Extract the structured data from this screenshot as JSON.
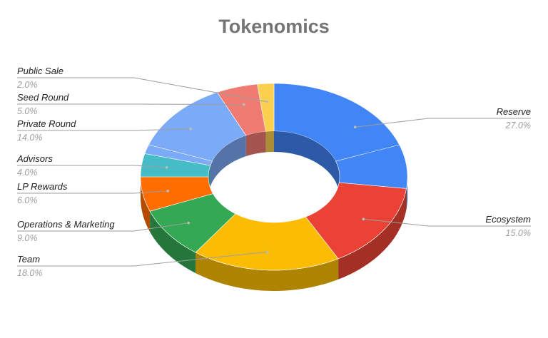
{
  "chart_data": {
    "type": "pie",
    "variant": "3d-donut",
    "title": "Tokenomics",
    "slices": [
      {
        "label": "Reserve",
        "value": 27.0,
        "value_label": "27.0%",
        "color": "#4285f4"
      },
      {
        "label": "Ecosystem",
        "value": 15.0,
        "value_label": "15.0%",
        "color": "#ea4335"
      },
      {
        "label": "Team",
        "value": 18.0,
        "value_label": "18.0%",
        "color": "#fbbc04"
      },
      {
        "label": "Operations & Marketing",
        "value": 9.0,
        "value_label": "9.0%",
        "color": "#34a853"
      },
      {
        "label": "LP Rewards",
        "value": 6.0,
        "value_label": "6.0%",
        "color": "#ff6d01"
      },
      {
        "label": "Advisors",
        "value": 4.0,
        "value_label": "4.0%",
        "color": "#46bdc6"
      },
      {
        "label": "Private Round",
        "value": 14.0,
        "value_label": "14.0%",
        "color": "#7baaf7"
      },
      {
        "label": "Seed Round",
        "value": 5.0,
        "value_label": "5.0%",
        "color": "#f07b72"
      },
      {
        "label": "Public Sale",
        "value": 2.0,
        "value_label": "2.0%",
        "color": "#fcd04f"
      }
    ],
    "legend": "none",
    "data_labels": "callout lines with name and percentage"
  }
}
